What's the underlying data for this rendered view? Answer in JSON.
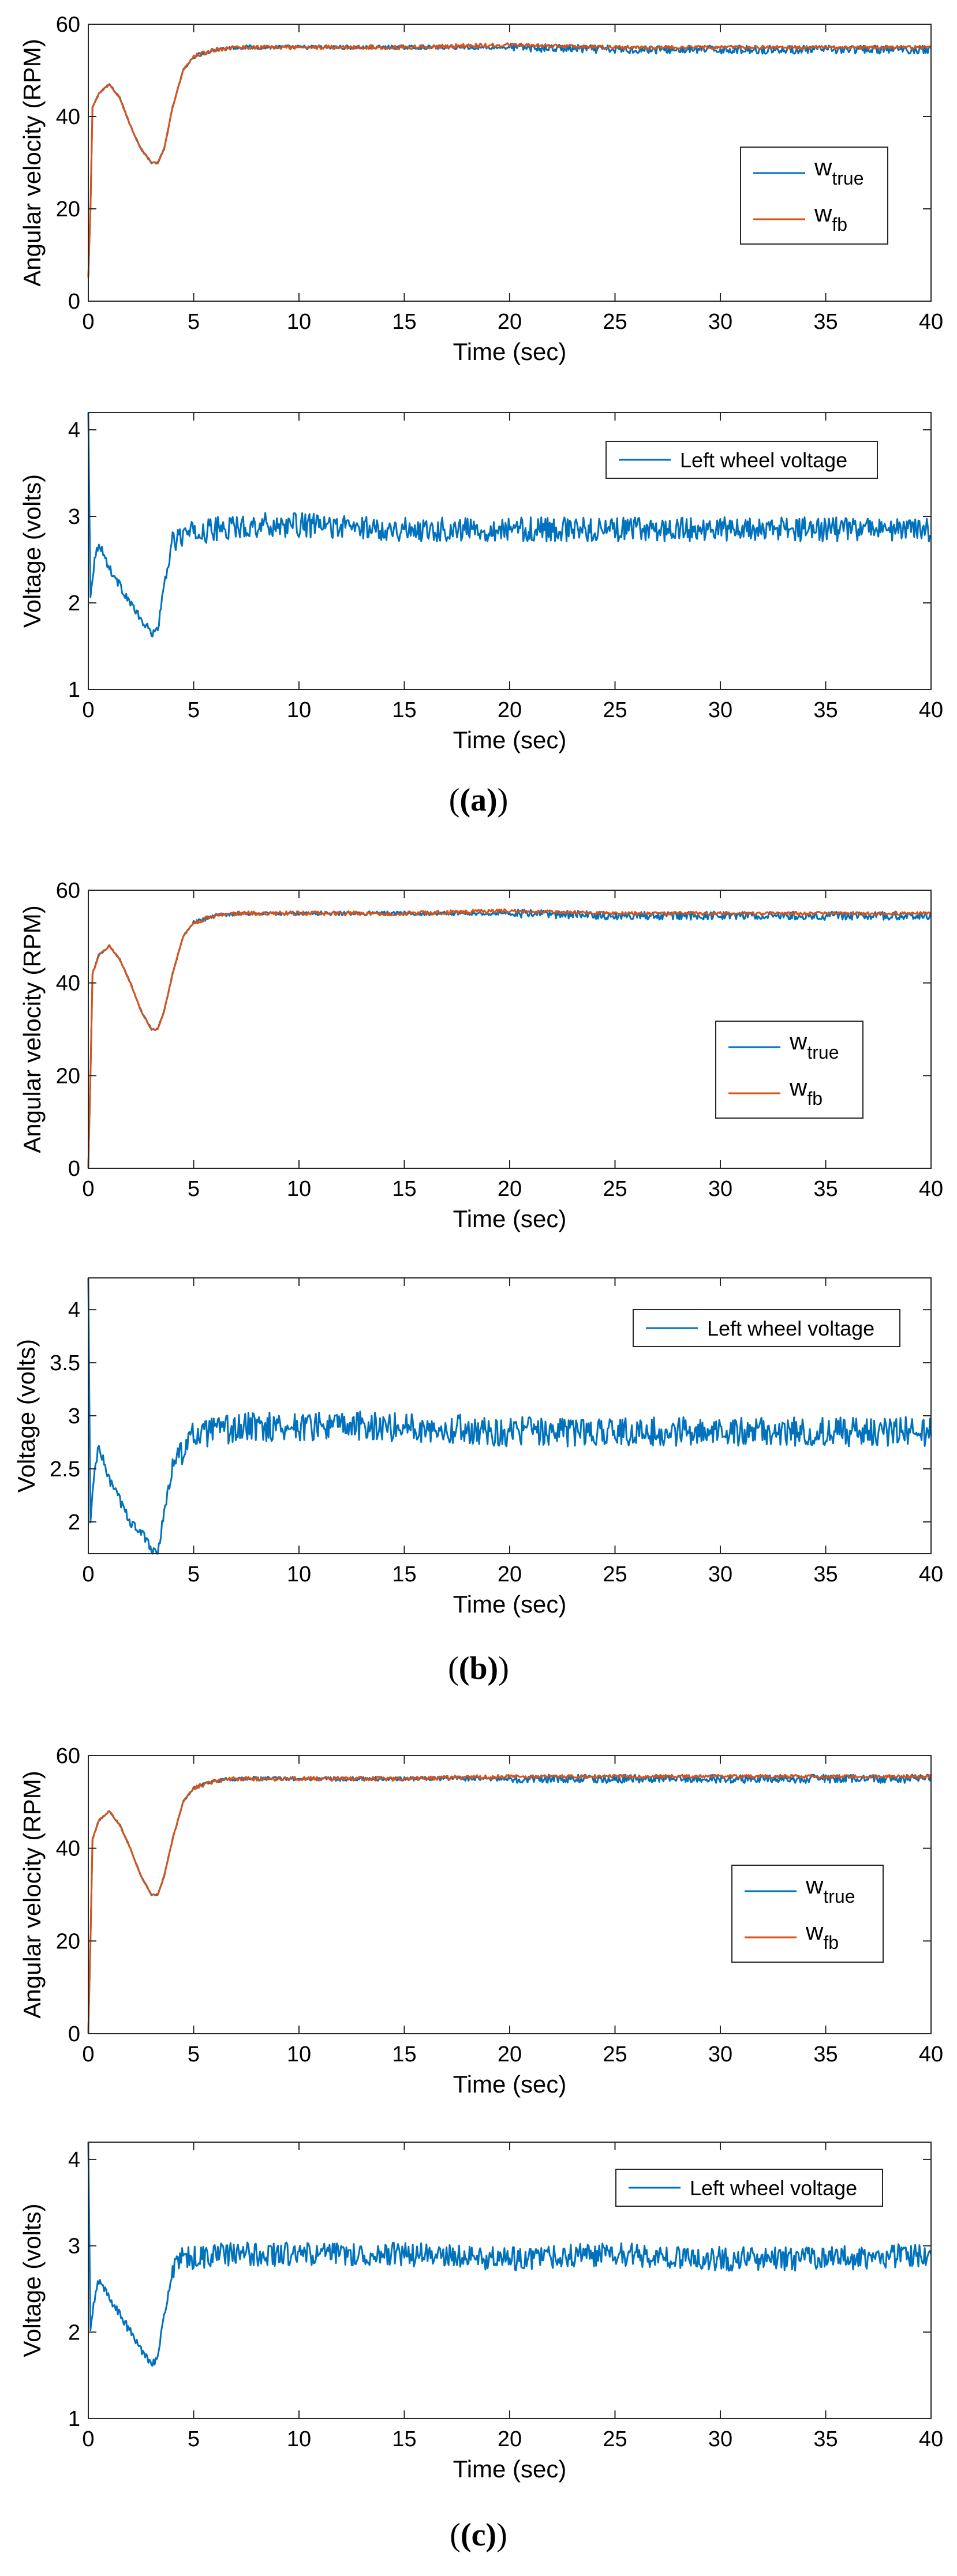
{
  "chart_data": [
    {
      "type": "line",
      "panel": "a",
      "xlabel": "Time (sec)",
      "ylabel": "Angular velocity (RPM)",
      "xlim": [
        0,
        40
      ],
      "ylim": [
        0,
        60
      ],
      "xticks": [
        "0",
        "5",
        "10",
        "15",
        "20",
        "25",
        "30",
        "35",
        "40"
      ],
      "yticks": [
        "0",
        "20",
        "40",
        "60"
      ],
      "legend_position": "right",
      "legend": [
        {
          "base": "w",
          "sub": "true",
          "color": "#0072BD"
        },
        {
          "base": "w",
          "sub": "fb",
          "color": "#D95319"
        }
      ],
      "series": [
        {
          "name": "w_true",
          "color": "#0072BD",
          "x": [
            0,
            0.1,
            0.2,
            0.5,
            1,
            1.5,
            2,
            2.5,
            3,
            3.3,
            3.6,
            4,
            4.5,
            5,
            6,
            7,
            8,
            10,
            15,
            20,
            25,
            30,
            35,
            40
          ],
          "y": [
            5,
            20,
            42,
            45,
            47,
            44,
            38,
            33,
            30,
            30,
            33,
            42,
            50,
            53,
            54.5,
            55,
            55,
            55,
            55,
            55,
            54.5,
            54.5,
            54.5,
            54.5
          ]
        },
        {
          "name": "w_fb",
          "color": "#D95319",
          "x": [
            0,
            0.1,
            0.2,
            0.5,
            1,
            1.5,
            2,
            2.5,
            3,
            3.3,
            3.6,
            4,
            4.5,
            5,
            6,
            7,
            8,
            10,
            15,
            20,
            25,
            30,
            35,
            40
          ],
          "y": [
            5,
            20,
            42,
            45,
            47,
            44,
            38,
            33,
            30,
            30,
            33,
            42,
            50,
            53,
            54.5,
            55,
            55,
            55,
            55,
            55.5,
            55,
            55,
            55,
            55
          ]
        }
      ]
    },
    {
      "type": "line",
      "panel": "a",
      "xlabel": "Time (sec)",
      "ylabel": "Voltage (volts)",
      "xlim": [
        0,
        40
      ],
      "ylim": [
        1,
        4.2
      ],
      "xticks": [
        "0",
        "5",
        "10",
        "15",
        "20",
        "25",
        "30",
        "35",
        "40"
      ],
      "yticks": [
        "1",
        "2",
        "3",
        "4"
      ],
      "legend_position": "top-right",
      "legend": [
        {
          "base": "Left wheel voltage",
          "sub": "",
          "color": "#0072BD"
        }
      ],
      "series": [
        {
          "name": "Left wheel voltage",
          "color": "#0072BD",
          "x": [
            0,
            0.1,
            0.3,
            0.5,
            1,
            1.5,
            2,
            2.5,
            3,
            3.3,
            3.6,
            4,
            4.5,
            5,
            6,
            8,
            10,
            15,
            20,
            25,
            30,
            35,
            40
          ],
          "y": [
            4.2,
            2.1,
            2.5,
            2.7,
            2.4,
            2.2,
            2.0,
            1.8,
            1.65,
            1.7,
            2.2,
            2.7,
            2.8,
            2.8,
            2.85,
            2.9,
            2.9,
            2.85,
            2.85,
            2.85,
            2.85,
            2.85,
            2.85
          ]
        }
      ]
    },
    {
      "type": "line",
      "panel": "b",
      "xlabel": "Time (sec)",
      "ylabel": "Angular velocity (RPM)",
      "xlim": [
        0,
        40
      ],
      "ylim": [
        0,
        60
      ],
      "xticks": [
        "0",
        "5",
        "10",
        "15",
        "20",
        "25",
        "30",
        "35",
        "40"
      ],
      "yticks": [
        "0",
        "20",
        "40",
        "60"
      ],
      "legend_position": "right",
      "legend": [
        {
          "base": "w",
          "sub": "true",
          "color": "#0072BD"
        },
        {
          "base": "w",
          "sub": "fb",
          "color": "#D95319"
        }
      ],
      "series": [
        {
          "name": "w_true",
          "color": "#0072BD",
          "x": [
            0,
            0.1,
            0.2,
            0.5,
            1,
            1.5,
            2,
            2.5,
            3,
            3.3,
            3.6,
            4,
            4.5,
            5,
            6,
            7,
            8,
            10,
            15,
            20,
            25,
            30,
            35,
            40
          ],
          "y": [
            0,
            20,
            42,
            46,
            48,
            45,
            40,
            34,
            30,
            30,
            34,
            42,
            50,
            53,
            54.5,
            55,
            55,
            55,
            55,
            55,
            54.5,
            54.5,
            54.5,
            54.5
          ]
        },
        {
          "name": "w_fb",
          "color": "#D95319",
          "x": [
            0,
            0.1,
            0.2,
            0.5,
            1,
            1.5,
            2,
            2.5,
            3,
            3.3,
            3.6,
            4,
            4.5,
            5,
            6,
            7,
            8,
            10,
            15,
            20,
            25,
            30,
            35,
            40
          ],
          "y": [
            0,
            20,
            42,
            46,
            48,
            45,
            40,
            34,
            30,
            30,
            34,
            42,
            50,
            53,
            54.5,
            55,
            55,
            55,
            55,
            55.5,
            55,
            55,
            55,
            55
          ]
        }
      ]
    },
    {
      "type": "line",
      "panel": "b",
      "xlabel": "Time (sec)",
      "ylabel": "Voltage (volts)",
      "xlim": [
        0,
        40
      ],
      "ylim": [
        1.7,
        4.3
      ],
      "xticks": [
        "0",
        "5",
        "10",
        "15",
        "20",
        "25",
        "30",
        "35",
        "40"
      ],
      "yticks": [
        "2",
        "2.5",
        "3",
        "3.5",
        "4"
      ],
      "legend_position": "top-right",
      "legend": [
        {
          "base": "Left wheel voltage",
          "sub": "",
          "color": "#0072BD"
        }
      ],
      "series": [
        {
          "name": "Left wheel voltage",
          "color": "#0072BD",
          "x": [
            0,
            0.1,
            0.3,
            0.5,
            1,
            1.5,
            2,
            2.5,
            3,
            3.3,
            3.6,
            4,
            4.5,
            5,
            6,
            8,
            10,
            15,
            20,
            25,
            30,
            35,
            40
          ],
          "y": [
            4.3,
            2.0,
            2.5,
            2.7,
            2.4,
            2.2,
            2.0,
            1.9,
            1.75,
            1.7,
            2.1,
            2.5,
            2.7,
            2.8,
            2.85,
            2.9,
            2.9,
            2.9,
            2.85,
            2.85,
            2.85,
            2.85,
            2.85
          ]
        }
      ]
    },
    {
      "type": "line",
      "panel": "c",
      "xlabel": "Time (sec)",
      "ylabel": "Angular velocity (RPM)",
      "xlim": [
        0,
        40
      ],
      "ylim": [
        0,
        60
      ],
      "xticks": [
        "0",
        "5",
        "10",
        "15",
        "20",
        "25",
        "30",
        "35",
        "40"
      ],
      "yticks": [
        "0",
        "20",
        "40",
        "60"
      ],
      "legend_position": "right",
      "legend": [
        {
          "base": "w",
          "sub": "true",
          "color": "#0072BD"
        },
        {
          "base": "w",
          "sub": "fb",
          "color": "#D95319"
        }
      ],
      "series": [
        {
          "name": "w_true",
          "color": "#0072BD",
          "x": [
            0,
            0.1,
            0.2,
            0.5,
            1,
            1.5,
            2,
            2.5,
            3,
            3.3,
            3.6,
            4,
            4.5,
            5,
            6,
            7,
            8,
            10,
            15,
            20,
            25,
            30,
            35,
            40
          ],
          "y": [
            0,
            20,
            42,
            46,
            48,
            45,
            40,
            34,
            30,
            30,
            34,
            42,
            50,
            53,
            54.5,
            55,
            55,
            55,
            55,
            55,
            55,
            55,
            55,
            55
          ]
        },
        {
          "name": "w_fb",
          "color": "#D95319",
          "x": [
            0,
            0.1,
            0.2,
            0.5,
            1,
            1.5,
            2,
            2.5,
            3,
            3.3,
            3.6,
            4,
            4.5,
            5,
            6,
            7,
            8,
            10,
            15,
            20,
            25,
            30,
            35,
            40
          ],
          "y": [
            0,
            20,
            42,
            46,
            48,
            45,
            40,
            34,
            30,
            30,
            34,
            42,
            50,
            53,
            54.5,
            55,
            55,
            55,
            55,
            55.5,
            55.5,
            55.5,
            55.5,
            55.5
          ]
        }
      ]
    },
    {
      "type": "line",
      "panel": "c",
      "xlabel": "Time (sec)",
      "ylabel": "Voltage (volts)",
      "xlim": [
        0,
        40
      ],
      "ylim": [
        1,
        4.2
      ],
      "xticks": [
        "0",
        "5",
        "10",
        "15",
        "20",
        "25",
        "30",
        "35",
        "40"
      ],
      "yticks": [
        "1",
        "2",
        "3",
        "4"
      ],
      "legend_position": "top-right",
      "legend": [
        {
          "base": "Left wheel voltage",
          "sub": "",
          "color": "#0072BD"
        }
      ],
      "series": [
        {
          "name": "Left wheel voltage",
          "color": "#0072BD",
          "x": [
            0,
            0.1,
            0.3,
            0.5,
            1,
            1.5,
            2,
            2.5,
            3,
            3.3,
            3.6,
            4,
            4.5,
            5,
            6,
            8,
            10,
            15,
            20,
            25,
            30,
            35,
            40
          ],
          "y": [
            4.2,
            2.0,
            2.4,
            2.6,
            2.4,
            2.2,
            2.0,
            1.8,
            1.65,
            1.7,
            2.2,
            2.7,
            2.85,
            2.85,
            2.9,
            2.9,
            2.9,
            2.9,
            2.85,
            2.9,
            2.85,
            2.85,
            2.9
          ]
        }
      ]
    }
  ],
  "captions": [
    "(a)",
    "(b)",
    "(c)"
  ]
}
